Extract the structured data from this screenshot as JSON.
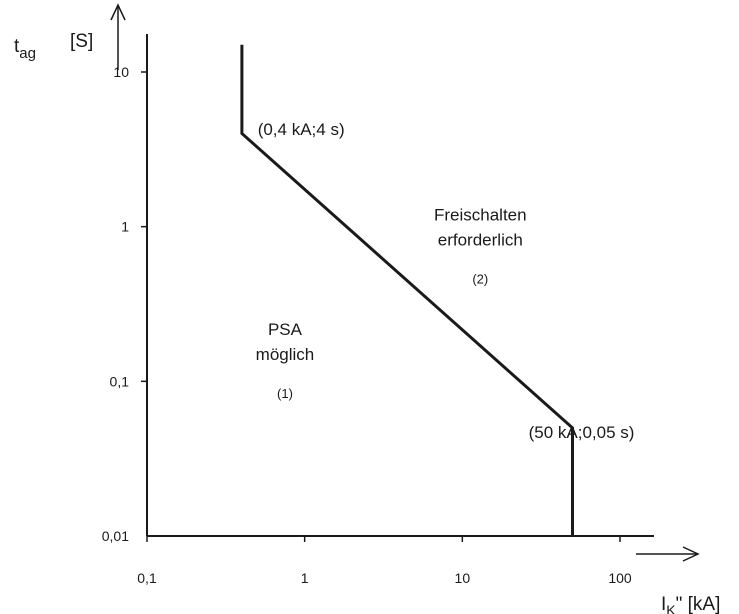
{
  "chart_data": {
    "type": "line",
    "title": "",
    "x_scale": "log",
    "y_scale": "log",
    "xlim": [
      0.1,
      100
    ],
    "ylim": [
      0.01,
      10
    ],
    "x_ticks": [
      {
        "value": 0.1,
        "label": "0,1"
      },
      {
        "value": 1,
        "label": "1"
      },
      {
        "value": 10,
        "label": "10"
      },
      {
        "value": 100,
        "label": "100"
      }
    ],
    "y_ticks": [
      {
        "value": 0.01,
        "label": "0,01"
      },
      {
        "value": 0.1,
        "label": "0,1"
      },
      {
        "value": 1,
        "label": "1"
      },
      {
        "value": 10,
        "label": "10"
      }
    ],
    "xlabel": {
      "main": "I",
      "sub": "K",
      "rest": "\" [kA]"
    },
    "ylabel": {
      "main": "t",
      "sub": "ag",
      "unit": "[S]"
    },
    "series": [
      {
        "points": [
          {
            "x": 0.4,
            "y": 15
          },
          {
            "x": 0.4,
            "y": 4
          },
          {
            "x": 50,
            "y": 0.05
          },
          {
            "x": 50,
            "y": 0.01
          }
        ]
      }
    ],
    "annotations": [
      {
        "text": "(0,4 kA;4 s)",
        "x": 0.95,
        "y": 3.9
      },
      {
        "text": "(50 kA;0,05 s)",
        "x": 57,
        "y": 0.043
      }
    ],
    "regions": [
      {
        "lines": [
          "PSA",
          "möglich"
        ],
        "number": "(1)",
        "x": 0.75,
        "y": 0.2
      },
      {
        "lines": [
          "Freischalten",
          "erforderlich"
        ],
        "number": "(2)",
        "x": 13,
        "y": 1.1
      }
    ],
    "grid": false,
    "legend": "none",
    "colors": {
      "line": "#1a1a1a",
      "axis": "#1a1a1a",
      "background": "#ffffff"
    }
  }
}
